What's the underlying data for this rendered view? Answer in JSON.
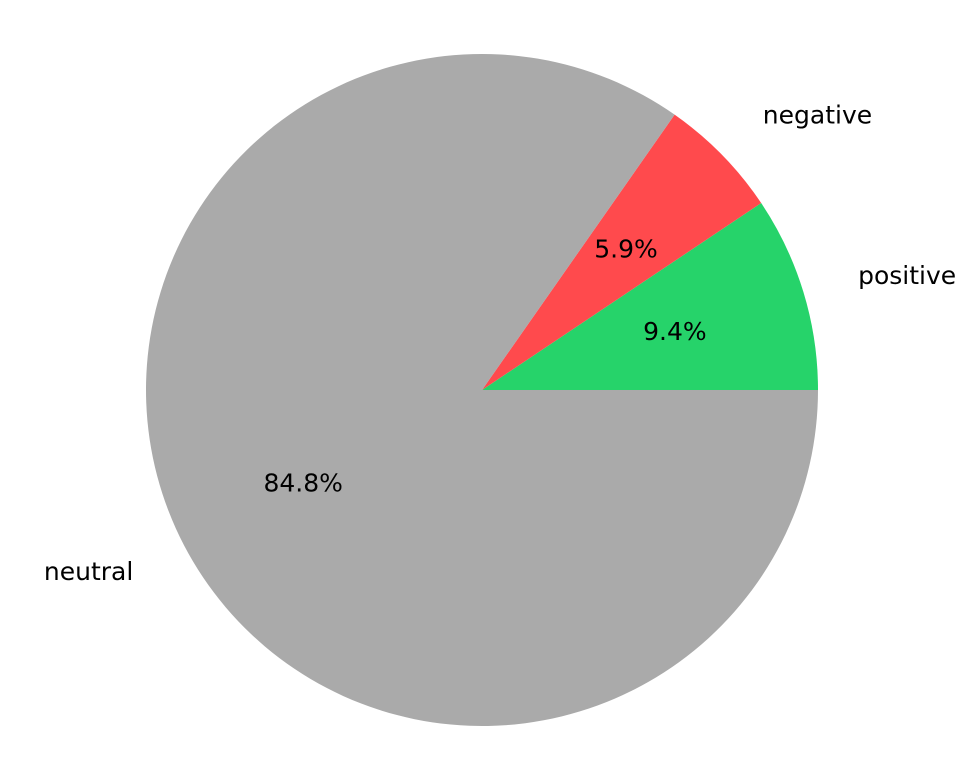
{
  "chart_data": {
    "type": "pie",
    "title": "",
    "start_angle": 0,
    "direction": "counterclockwise",
    "slices": [
      {
        "label": "positive",
        "value": 9.4,
        "pct_label": "9.4%",
        "color": "#26d36a"
      },
      {
        "label": "negative",
        "value": 5.9,
        "pct_label": "5.9%",
        "color": "#ff4a4d"
      },
      {
        "label": "neutral",
        "value": 84.8,
        "pct_label": "84.8%",
        "color": "#aaaaaa"
      }
    ]
  }
}
